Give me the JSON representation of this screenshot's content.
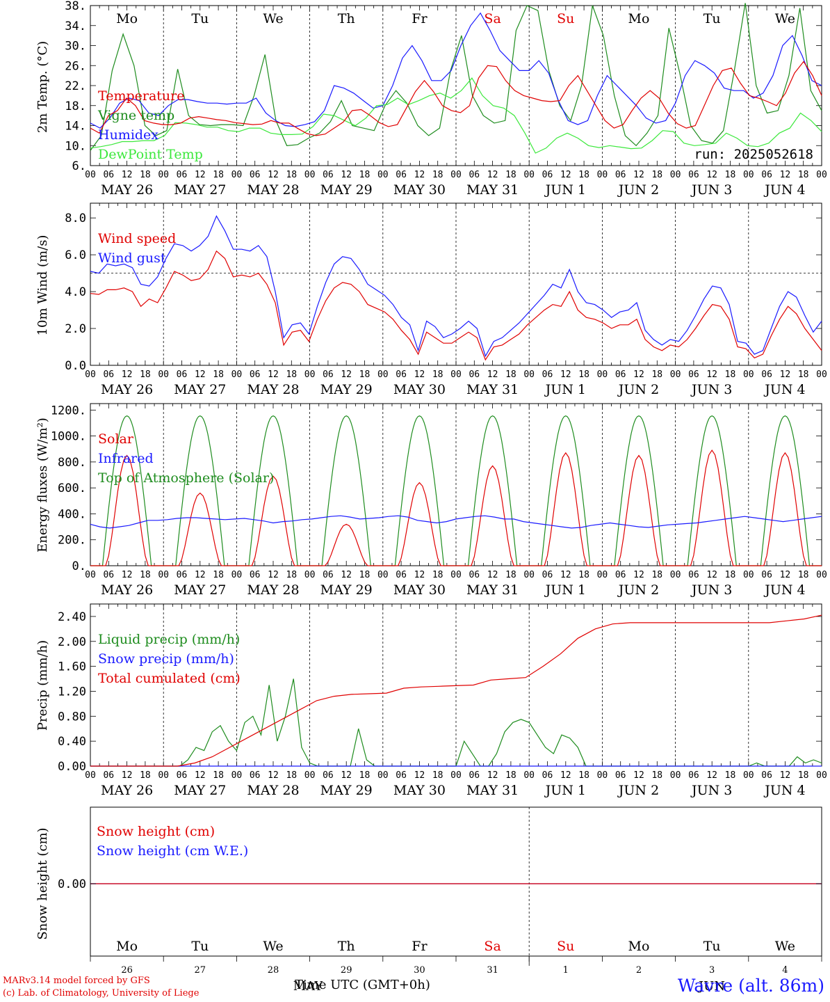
{
  "chart_data": [
    {
      "type": "line",
      "ylabel": "2m Temp. (°C)",
      "ylim": [
        6,
        38
      ],
      "yticks": [
        "38.",
        "34.",
        "30.",
        "26.",
        "22.",
        "18.",
        "14.",
        "10.",
        "6."
      ],
      "annotation": "run: 2025052618",
      "days": [
        "Mo",
        "Tu",
        "We",
        "Th",
        "Fr",
        "Sa",
        "Su",
        "Mo",
        "Tu",
        "We"
      ],
      "weekend_days": [
        "Sa",
        "Su"
      ],
      "series": [
        {
          "name": "Temperature",
          "color": "#e00000",
          "values": [
            13.5,
            12.5,
            16,
            17,
            19.5,
            18,
            15,
            14.5,
            14.2,
            14.2,
            14.5,
            15.5,
            15.8,
            15.5,
            15.2,
            15,
            14.6,
            14.4,
            14.2,
            14.3,
            15,
            14.5,
            14.5,
            13.4,
            12.4,
            12,
            12.3,
            13.5,
            14.7,
            17,
            17.2,
            16,
            14.6,
            13.8,
            14.2,
            17.5,
            20.8,
            23,
            20.8,
            18,
            17,
            16.6,
            18,
            23.5,
            26,
            25.8,
            23,
            21,
            20,
            19.5,
            19,
            18.8,
            19,
            22,
            24,
            21,
            18,
            15,
            13.5,
            14.2,
            17,
            19.5,
            21,
            19.5,
            16.5,
            14.4,
            13.5,
            14,
            18,
            22,
            25,
            25.5,
            22.5,
            20,
            19.5,
            18.8,
            18,
            20.5,
            24.5,
            26.8,
            24,
            20
          ]
        },
        {
          "name": "Vigne temp",
          "color": "#1e8c1e",
          "values": [
            9,
            12,
            25,
            32.3,
            26,
            14,
            12,
            13,
            25.3,
            16,
            14.2,
            14,
            14.2,
            14.2,
            14,
            20,
            28.2,
            15,
            10,
            10.2,
            11.5,
            12.5,
            14.8,
            19,
            14,
            13.5,
            13,
            18,
            21,
            18.5,
            14,
            12,
            13.5,
            25,
            32,
            20,
            16,
            14.5,
            15,
            33,
            38,
            37,
            25,
            18,
            15,
            22,
            38,
            32,
            20,
            12,
            10,
            12.5,
            16,
            33.5,
            24.5,
            14,
            11,
            10.5,
            13,
            25,
            38.5,
            22,
            16.5,
            17,
            24,
            37.5,
            21,
            17
          ]
        },
        {
          "name": "Humidex",
          "color": "#1a1aff",
          "values": [
            14.5,
            13.5,
            15.5,
            18.5,
            19.5,
            19,
            16.5,
            16,
            18,
            19.2,
            19.2,
            18.8,
            18.5,
            18.5,
            18.3,
            18.5,
            18.5,
            19.5,
            16.5,
            15,
            14,
            13.8,
            14.2,
            14.8,
            17,
            22,
            21.5,
            20.5,
            19,
            17.5,
            18,
            22,
            27.5,
            30,
            27,
            23,
            23,
            25,
            30,
            34,
            36.5,
            33,
            29,
            27,
            25,
            25,
            27,
            24.5,
            19,
            15,
            14.2,
            15,
            20,
            24,
            22,
            20,
            18,
            15.5,
            14.5,
            15,
            18.5,
            24,
            27,
            26,
            24.5,
            21.5,
            21,
            21,
            19.5,
            20.5,
            24,
            30,
            32,
            28,
            23,
            22
          ]
        },
        {
          "name": "DewPoint Temp",
          "color": "#3ce83c",
          "values": [
            9.5,
            9.8,
            10.2,
            10.8,
            10.8,
            11,
            11,
            12,
            14.6,
            14.5,
            14.2,
            13.7,
            13.7,
            13,
            12.8,
            13.5,
            13.5,
            12.5,
            12.2,
            12.2,
            12.3,
            13.8,
            16.3,
            16,
            15,
            14,
            15.5,
            18,
            18.2,
            19.5,
            18.2,
            19,
            20,
            20.5,
            19.5,
            21,
            23.5,
            20,
            18,
            17.5,
            16,
            12.5,
            8.5,
            9.5,
            11.5,
            12.5,
            11.5,
            10,
            9.6,
            10,
            9.7,
            9.4,
            9.5,
            11,
            13,
            12.8,
            10.5,
            10,
            10.2,
            10.5,
            12.5,
            11.5,
            10,
            9.8,
            10.5,
            12.5,
            13.5,
            16.5,
            15,
            12.8
          ]
        }
      ]
    },
    {
      "type": "line",
      "ylabel": "10m Wind (m/s)",
      "ylim": [
        0,
        8.8
      ],
      "yticks": [
        "8.0",
        "6.0",
        "4.0",
        "2.0",
        "0.0"
      ],
      "reference_line": 5.0,
      "series": [
        {
          "name": "Wind speed",
          "color": "#e00000",
          "values": [
            3.9,
            3.85,
            4.1,
            4.1,
            4.2,
            4,
            3.2,
            3.6,
            3.4,
            4.2,
            5.1,
            4.9,
            4.6,
            4.7,
            5.2,
            6.2,
            5.8,
            4.8,
            4.9,
            4.8,
            5,
            4.4,
            3.4,
            1.1,
            1.8,
            1.9,
            1.3,
            2.5,
            3.5,
            4.2,
            4.5,
            4.4,
            4,
            3.3,
            3.1,
            2.9,
            2.5,
            1.9,
            1.4,
            0.6,
            1.8,
            1.5,
            1.2,
            1.2,
            1.5,
            1.8,
            1.5,
            0.3,
            1,
            1.1,
            1.4,
            1.7,
            2.2,
            2.6,
            3,
            3.3,
            3.2,
            4,
            3,
            2.6,
            2.5,
            2.3,
            2,
            2.2,
            2.2,
            2.5,
            1.4,
            1,
            0.8,
            1.1,
            1,
            1.4,
            2,
            2.7,
            3.3,
            3.2,
            2.5,
            1,
            0.9,
            0.4,
            0.6,
            1.6,
            2.5,
            3.2,
            2.8,
            2,
            1.4,
            0.8
          ]
        },
        {
          "name": "Wind gust",
          "color": "#1a1aff",
          "values": [
            5.1,
            5,
            5.5,
            5.4,
            5.5,
            5.3,
            4.4,
            4.3,
            4.8,
            5.8,
            6.6,
            6.5,
            6.2,
            6.5,
            7,
            8.1,
            7.3,
            6.3,
            6.3,
            6.2,
            6.5,
            5.9,
            4,
            1.5,
            2.2,
            2.3,
            1.7,
            3.2,
            4.5,
            5.5,
            5.9,
            5.8,
            5.2,
            4.4,
            4.1,
            3.8,
            3.3,
            2.6,
            2.2,
            0.8,
            2.4,
            2.1,
            1.5,
            1.7,
            2,
            2.4,
            2,
            0.5,
            1.3,
            1.5,
            1.9,
            2.3,
            2.8,
            3.3,
            3.8,
            4.4,
            4.2,
            5.2,
            4,
            3.4,
            3.3,
            3,
            2.6,
            2.9,
            3,
            3.4,
            1.9,
            1.4,
            1.1,
            1.4,
            1.3,
            1.9,
            2.7,
            3.6,
            4.3,
            4.2,
            3.3,
            1.3,
            1.2,
            0.6,
            0.8,
            2,
            3.2,
            4,
            3.7,
            2.7,
            1.8,
            2.4
          ]
        }
      ]
    },
    {
      "type": "line",
      "ylabel": "Energy fluxes (W/m²)",
      "ylim": [
        0,
        1250
      ],
      "yticks": [
        "1200.",
        "1000.",
        "800.",
        "600.",
        "400.",
        "200.",
        "0."
      ],
      "series": [
        {
          "name": "Solar",
          "color": "#e00000",
          "day_peaks": [
            850,
            560,
            690,
            320,
            640,
            770,
            870,
            850,
            890,
            870
          ]
        },
        {
          "name": "Infrared",
          "color": "#1a1aff",
          "values": [
            320,
            300,
            290,
            300,
            310,
            330,
            350,
            350,
            355,
            365,
            370,
            370,
            365,
            360,
            355,
            360,
            365,
            355,
            345,
            330,
            340,
            345,
            355,
            360,
            370,
            380,
            385,
            375,
            360,
            365,
            370,
            380,
            385,
            375,
            350,
            340,
            330,
            340,
            360,
            370,
            380,
            385,
            375,
            360,
            360,
            340,
            330,
            320,
            310,
            300,
            290,
            295,
            310,
            320,
            330,
            320,
            310,
            300,
            295,
            305,
            315,
            320,
            325,
            330,
            340,
            350,
            360,
            370,
            380,
            370,
            360,
            350,
            340,
            350,
            360,
            370,
            380
          ]
        },
        {
          "name": "Top of Atmosphere (Solar)",
          "color": "#1e8c1e",
          "peak": 1155
        }
      ]
    },
    {
      "type": "line",
      "ylabel": "Precip (mm/h)",
      "ylim": [
        0,
        2.6
      ],
      "yticks": [
        "2.40",
        "2.00",
        "1.60",
        "1.20",
        "0.80",
        "0.40",
        "0.00"
      ],
      "series": [
        {
          "name": "Liquid precip (mm/h)",
          "color": "#1e8c1e",
          "values": [
            0,
            0,
            0,
            0,
            0,
            0,
            0,
            0,
            0,
            0,
            0,
            0,
            0.1,
            0.3,
            0.25,
            0.55,
            0.65,
            0.4,
            0.25,
            0.7,
            0.8,
            0.5,
            1.3,
            0.4,
            0.8,
            1.4,
            0.3,
            0.05,
            0,
            0,
            0,
            0,
            0,
            0.6,
            0.1,
            0,
            0,
            0,
            0,
            0,
            0,
            0,
            0,
            0,
            0,
            0,
            0.4,
            0.2,
            0,
            0,
            0.2,
            0.55,
            0.7,
            0.75,
            0.7,
            0.5,
            0.3,
            0.2,
            0.5,
            0.45,
            0.3,
            0,
            0,
            0,
            0,
            0,
            0,
            0,
            0,
            0,
            0,
            0,
            0,
            0,
            0,
            0,
            0,
            0,
            0,
            0,
            0,
            0,
            0.05,
            0,
            0,
            0,
            0,
            0.15,
            0.05,
            0.1,
            0.05
          ]
        },
        {
          "name": "Snow precip (mm/h)",
          "color": "#1a1aff",
          "values": [
            0,
            0
          ]
        },
        {
          "name": "Total cumulated (cm)",
          "color": "#e00000",
          "values": [
            0,
            0,
            0,
            0,
            0,
            0,
            0.05,
            0.15,
            0.3,
            0.45,
            0.6,
            0.75,
            0.9,
            1.05,
            1.12,
            1.15,
            1.16,
            1.17,
            1.25,
            1.27,
            1.28,
            1.29,
            1.3,
            1.38,
            1.4,
            1.42,
            1.6,
            1.8,
            2.05,
            2.2,
            2.28,
            2.3,
            2.3,
            2.3,
            2.3,
            2.3,
            2.3,
            2.3,
            2.3,
            2.3,
            2.33,
            2.36,
            2.42
          ]
        }
      ]
    },
    {
      "type": "line",
      "ylabel": "Snow height (cm)",
      "ytick": "0.00",
      "series": [
        {
          "name": "Snow height (cm)",
          "color": "#e00000",
          "values": [
            0,
            0
          ]
        },
        {
          "name": "Snow height (cm W.E.)",
          "color": "#1a1aff",
          "values": [
            0,
            0
          ]
        }
      ]
    }
  ],
  "x_axis": {
    "hour_labels": [
      "00",
      "06",
      "12",
      "18"
    ],
    "final_hour": "00",
    "date_labels": [
      "MAY 26",
      "MAY 27",
      "MAY 28",
      "MAY 29",
      "MAY 30",
      "MAY 31",
      "JUN  1",
      "JUN  2",
      "JUN  3",
      "JUN  4"
    ],
    "bottom_dates": [
      "26",
      "27",
      "28",
      "29",
      "30",
      "31",
      "1",
      "2",
      "3",
      "4"
    ],
    "bottom_month_left": "MAY",
    "bottom_month_right": "JUN",
    "title": "Time UTC (GMT+0h)"
  },
  "credits": {
    "line1": "MARv3.14 model forced by GFS",
    "line2": "(c) Lab. of Climatology, University of Liege"
  },
  "station": "Wavre (alt. 86m)"
}
